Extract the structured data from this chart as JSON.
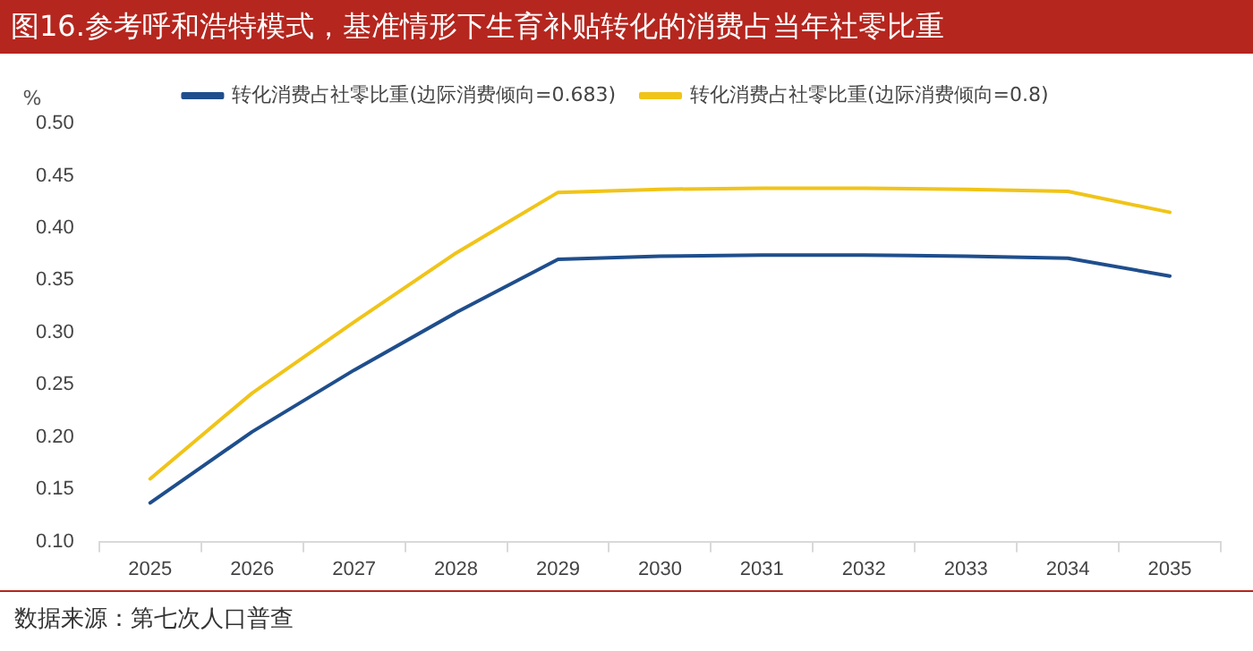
{
  "chart_data": {
    "type": "line",
    "title": "图16.参考呼和浩特模式，基准情形下生育补贴转化的消费占当年社零比重",
    "ylabel": "%",
    "categories": [
      "2025",
      "2026",
      "2027",
      "2028",
      "2029",
      "2030",
      "2031",
      "2032",
      "2033",
      "2034",
      "2035"
    ],
    "series": [
      {
        "name": "转化消费占社零比重(边际消费倾向=0.683)",
        "color": "#1f4e8c",
        "values": [
          0.137,
          0.205,
          0.264,
          0.319,
          0.37,
          0.373,
          0.374,
          0.374,
          0.373,
          0.371,
          0.354
        ]
      },
      {
        "name": "转化消费占社零比重(边际消费倾向=0.8)",
        "color": "#f0c419",
        "values": [
          0.16,
          0.242,
          0.31,
          0.376,
          0.434,
          0.437,
          0.438,
          0.438,
          0.437,
          0.435,
          0.415
        ]
      }
    ],
    "ylim": [
      0.1,
      0.5
    ],
    "yticks": [
      {
        "value": 0.1,
        "label": "0.10"
      },
      {
        "value": 0.15,
        "label": "0.15"
      },
      {
        "value": 0.2,
        "label": "0.20"
      },
      {
        "value": 0.25,
        "label": "0.25"
      },
      {
        "value": 0.3,
        "label": "0.30"
      },
      {
        "value": 0.35,
        "label": "0.35"
      },
      {
        "value": 0.4,
        "label": "0.40"
      },
      {
        "value": 0.45,
        "label": "0.45"
      },
      {
        "value": 0.5,
        "label": "0.50"
      }
    ],
    "grid": false,
    "legend": "top",
    "marker": "none",
    "line_style": "solid",
    "annotations": [
      "数据来源：第七次人口普查"
    ]
  }
}
